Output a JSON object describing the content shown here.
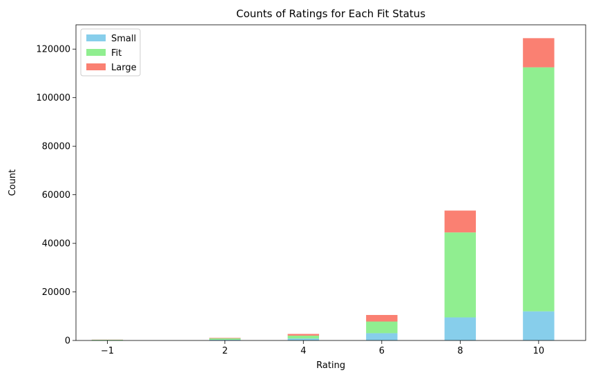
{
  "chart_data": {
    "type": "bar",
    "stacked": true,
    "title": "Counts of Ratings for Each Fit Status",
    "xlabel": "Rating",
    "ylabel": "Count",
    "x": [
      -1,
      2,
      4,
      6,
      8,
      10
    ],
    "x_tick_labels": [
      "−1",
      "2",
      "4",
      "6",
      "8",
      "10"
    ],
    "xlim": [
      -1.8,
      11.2
    ],
    "ylim": [
      0,
      130000
    ],
    "y_ticks": [
      0,
      20000,
      40000,
      60000,
      80000,
      100000,
      120000
    ],
    "y_tick_labels": [
      "0",
      "20000",
      "40000",
      "60000",
      "80000",
      "100000",
      "120000"
    ],
    "bar_width": 0.8,
    "series": [
      {
        "name": "Small",
        "color": "#87ceeb",
        "values": [
          80,
          300,
          800,
          3000,
          9500,
          12000
        ]
      },
      {
        "name": "Fit",
        "color": "#90ee90",
        "values": [
          200,
          600,
          1200,
          4800,
          35000,
          100500
        ]
      },
      {
        "name": "Large",
        "color": "#fa8072",
        "values": [
          50,
          200,
          700,
          2700,
          9000,
          12000
        ]
      }
    ],
    "legend": {
      "position": "top-left",
      "entries": [
        "Small",
        "Fit",
        "Large"
      ]
    },
    "grid": false
  }
}
